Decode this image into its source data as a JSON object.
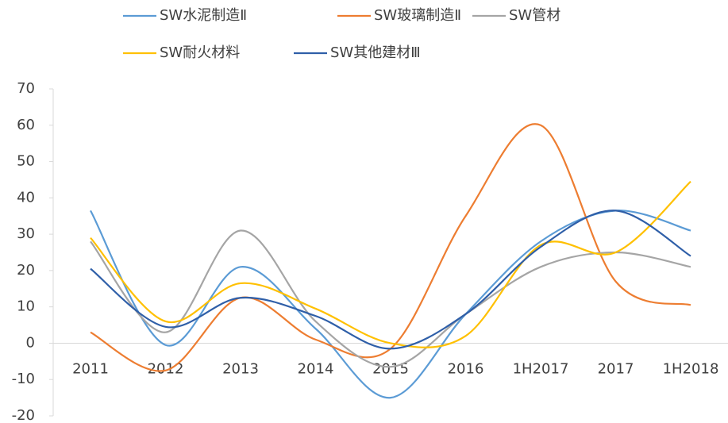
{
  "chart_data": {
    "type": "line",
    "smooth": true,
    "categories": [
      "2011",
      "2012",
      "2013",
      "2014",
      "2015",
      "2016",
      "1H2017",
      "2017",
      "1H2018"
    ],
    "series": [
      {
        "name": "SW水泥制造Ⅱ",
        "color": "#5B9BD5",
        "values": [
          36.5,
          -0.5,
          21,
          4,
          -15,
          8,
          28,
          36.5,
          31
        ]
      },
      {
        "name": "SW玻璃制造Ⅱ",
        "color": "#ED7D31",
        "values": [
          3,
          -7.5,
          12.5,
          1,
          -1.5,
          35,
          60,
          17,
          10.5
        ]
      },
      {
        "name": "SW管材",
        "color": "#A5A5A5",
        "values": [
          28,
          3,
          31,
          6,
          -6.5,
          8,
          21,
          25,
          21
        ]
      },
      {
        "name": "SW耐火材料",
        "color": "#FFC000",
        "values": [
          29,
          6,
          16.5,
          9.5,
          0,
          2,
          27,
          25,
          44.5
        ]
      },
      {
        "name": "SW其他建材Ⅲ",
        "color": "#2F5FA8",
        "values": [
          20.5,
          4.5,
          12.5,
          7.5,
          -1.5,
          8,
          26.5,
          36.5,
          24
        ]
      }
    ],
    "ylim": [
      -20,
      70
    ],
    "yticks": [
      -20,
      -10,
      0,
      10,
      20,
      30,
      40,
      50,
      60,
      70
    ],
    "legend": "top"
  }
}
